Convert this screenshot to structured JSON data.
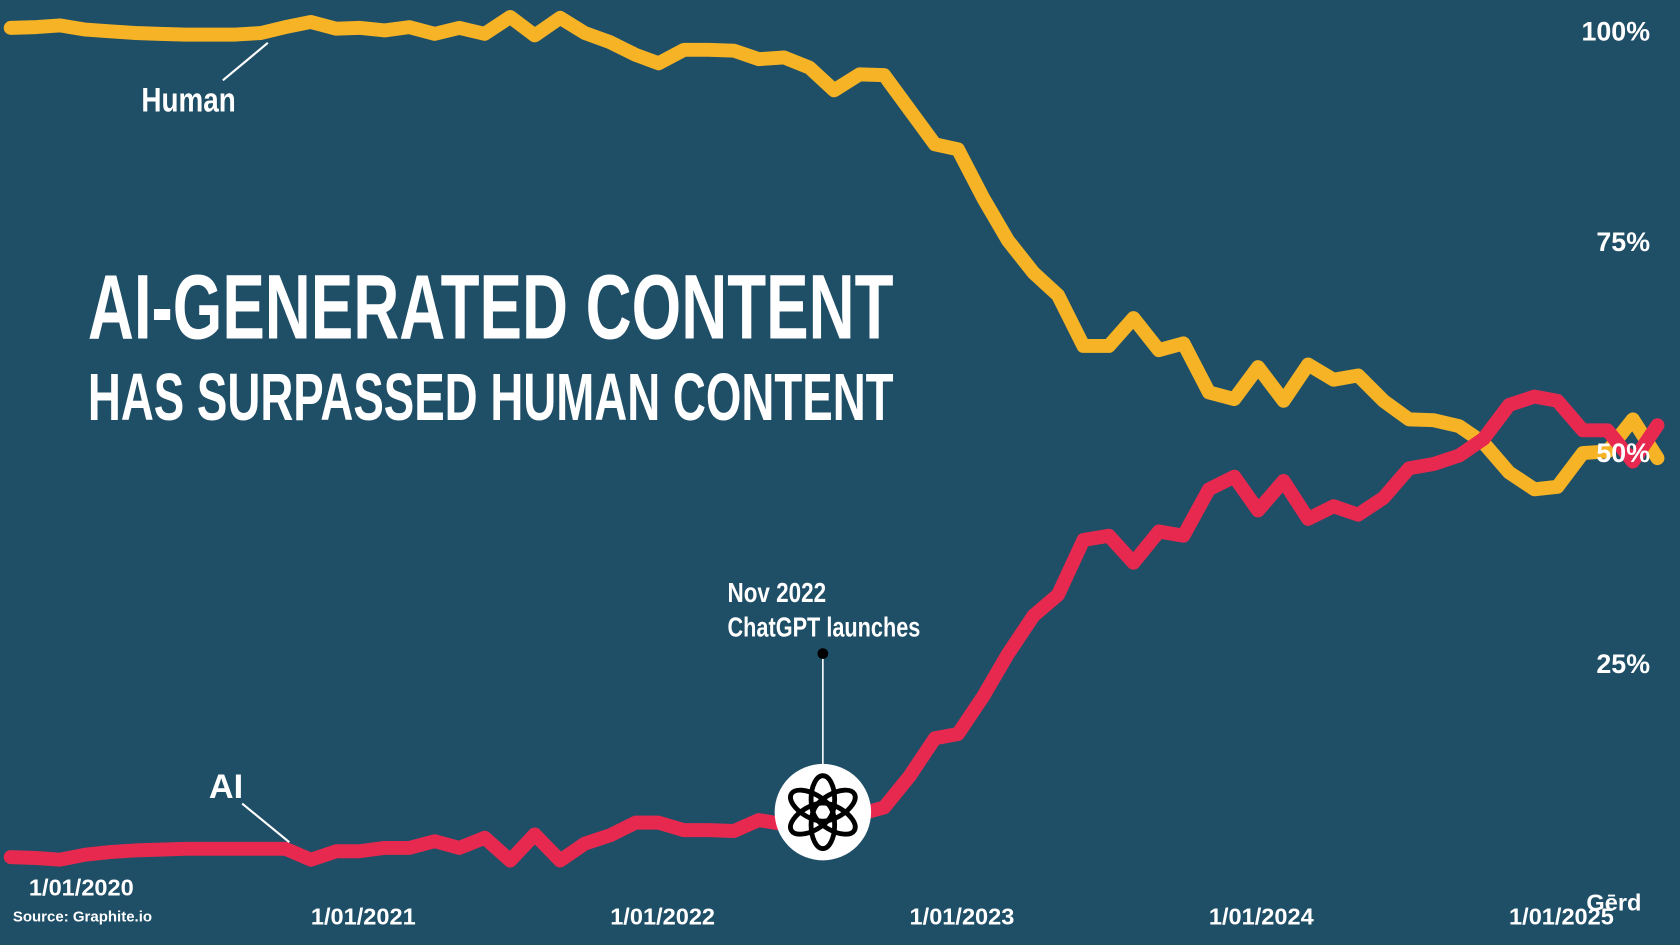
{
  "chart_data": {
    "type": "line",
    "title": "AI-GENERATED CONTENT",
    "subtitle": "HAS SURPASSED HUMAN CONTENT",
    "annotations": [
      "Nov 2022",
      "ChatGPT launches"
    ],
    "source": "Source: Graphite.io",
    "brand": "Gērd",
    "x": [
      "2020-01-01",
      "2020-02-01",
      "2020-03-01",
      "2020-04-01",
      "2020-05-01",
      "2020-06-01",
      "2020-07-01",
      "2020-08-01",
      "2020-09-01",
      "2020-10-01",
      "2020-11-01",
      "2020-12-01",
      "2021-01-01",
      "2021-02-01",
      "2021-03-01",
      "2021-04-01",
      "2021-05-01",
      "2021-06-01",
      "2021-07-01",
      "2021-08-01",
      "2021-09-01",
      "2021-10-01",
      "2021-11-01",
      "2021-12-01",
      "2022-01-01",
      "2022-02-01",
      "2022-03-01",
      "2022-04-01",
      "2022-05-01",
      "2022-06-01",
      "2022-07-01",
      "2022-08-01",
      "2022-09-01",
      "2022-10-01",
      "2022-11-01",
      "2022-12-01",
      "2023-01-01",
      "2023-02-01",
      "2023-03-01",
      "2023-04-01",
      "2023-05-01",
      "2023-06-01",
      "2023-07-01",
      "2023-08-01",
      "2023-09-01",
      "2023-10-01",
      "2023-11-01",
      "2023-12-01",
      "2024-01-01",
      "2024-02-01",
      "2024-03-01",
      "2024-04-01",
      "2024-05-01",
      "2024-06-01",
      "2024-07-01",
      "2024-08-01",
      "2024-09-01",
      "2024-10-01",
      "2024-11-01",
      "2024-12-01",
      "2025-01-01",
      "2025-02-01",
      "2025-03-01",
      "2025-04-01",
      "2025-05-01",
      "2025-06-01",
      "2025-07-01"
    ],
    "series": [
      {
        "name": "Human",
        "color": "#f5b325",
        "values": [
          100.2,
          100.3,
          100.5,
          100,
          99.8,
          99.6,
          99.5,
          99.4,
          99.4,
          99.4,
          99.6,
          100.3,
          100.9,
          100.1,
          100.2,
          99.9,
          100.3,
          99.5,
          100.2,
          99.5,
          101.5,
          99.3,
          101.4,
          99.6,
          98.5,
          97,
          96,
          97.6,
          97.6,
          97.5,
          96.5,
          96.7,
          95.5,
          92.8,
          94.7,
          94.6,
          90.5,
          86.4,
          85.8,
          80,
          75,
          71.2,
          68.5,
          62.5,
          62.5,
          65.8,
          62,
          62.8,
          57,
          56.2,
          60,
          56,
          60.3,
          58.5,
          59,
          56,
          53.8,
          53.7,
          53,
          51,
          47.5,
          45.5,
          45.8,
          49.8,
          50,
          53.8,
          49.2
        ]
      },
      {
        "name": "AI",
        "color": "#e8294f",
        "values": [
          1.9,
          1.8,
          1.6,
          2.2,
          2.5,
          2.7,
          2.8,
          2.9,
          2.9,
          2.9,
          2.9,
          2.9,
          1.6,
          2.6,
          2.6,
          3,
          3,
          3.8,
          3,
          4.2,
          1.5,
          4.6,
          1.5,
          3.5,
          4.5,
          6,
          6,
          5.1,
          5.1,
          5,
          6.3,
          5.8,
          6.5,
          7,
          7,
          7.8,
          11.5,
          16,
          16.5,
          21,
          26,
          30.5,
          33,
          39.5,
          40,
          36.8,
          40.5,
          40,
          45.5,
          47,
          43,
          46.5,
          42,
          43.5,
          42.5,
          44.5,
          48,
          48.5,
          49.5,
          51.5,
          55.5,
          56.5,
          56,
          52.5,
          52.5,
          48.8,
          53.1
        ]
      }
    ],
    "xlim": [
      "2020-01-01",
      "2025-07-01"
    ],
    "xticks": [
      {
        "value": "2020-01-01",
        "label": "1/01/2020"
      },
      {
        "value": "2021-01-01",
        "label": "1/01/2021"
      },
      {
        "value": "2022-01-01",
        "label": "1/01/2022"
      },
      {
        "value": "2023-01-01",
        "label": "1/01/2023"
      },
      {
        "value": "2024-01-01",
        "label": "1/01/2024"
      },
      {
        "value": "2025-01-01",
        "label": "1/01/2025"
      }
    ],
    "ylim": [
      0,
      103
    ],
    "yticks": [
      {
        "value": 25,
        "label": "25%"
      },
      {
        "value": 50,
        "label": "50%"
      },
      {
        "value": 75,
        "label": "75%"
      },
      {
        "value": 100,
        "label": "100%"
      }
    ],
    "grid": false
  }
}
